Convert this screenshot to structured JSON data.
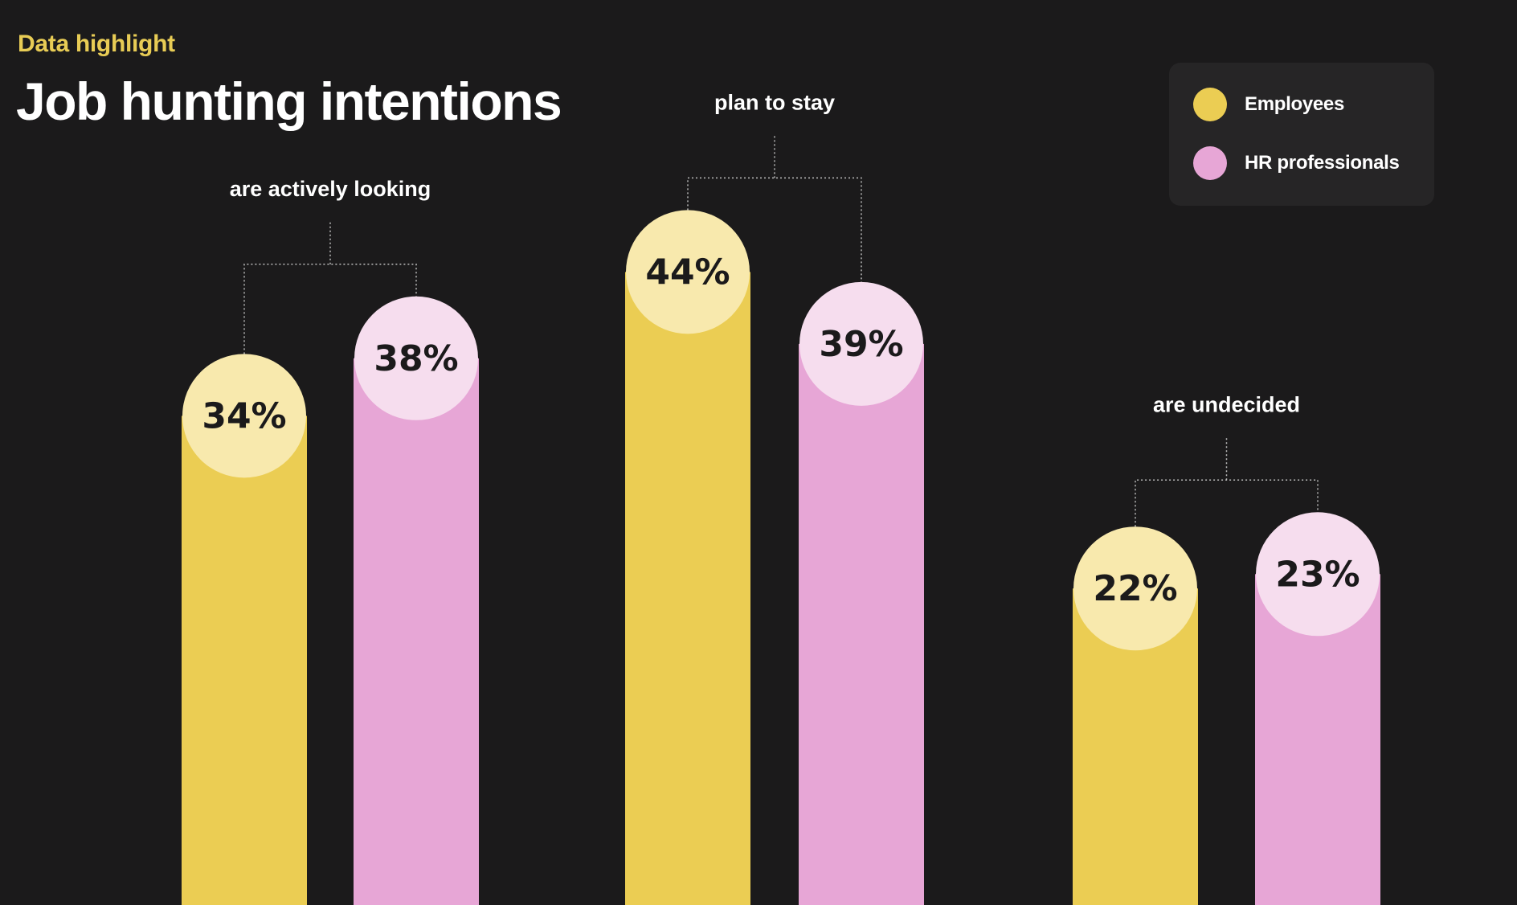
{
  "header": {
    "eyebrow": "Data highlight",
    "title": "Job hunting intentions"
  },
  "legend": {
    "items": [
      {
        "label": "Employees",
        "color": "#ebcd53"
      },
      {
        "label": "HR professionals",
        "color": "#e7a6d6"
      }
    ]
  },
  "colors": {
    "background": "#1b1a1b",
    "employees_bar": "#ebcd53",
    "employees_cap": "#f8e9ad",
    "hr_bar": "#e7a6d6",
    "hr_cap": "#f6ddee",
    "value_text": "#1b1a1b",
    "group_text": "#ffffff"
  },
  "chart_data": {
    "type": "bar",
    "categories": [
      "are actively looking",
      "plan to stay",
      "are undecided"
    ],
    "series": [
      {
        "name": "Employees",
        "values": [
          34,
          44,
          22
        ],
        "labels": [
          "34%",
          "44%",
          "22%"
        ]
      },
      {
        "name": "HR professionals",
        "values": [
          38,
          39,
          23
        ],
        "labels": [
          "38%",
          "39%",
          "23%"
        ]
      }
    ],
    "unit": "%",
    "legend": "top-right",
    "grid": false,
    "axes": false
  }
}
